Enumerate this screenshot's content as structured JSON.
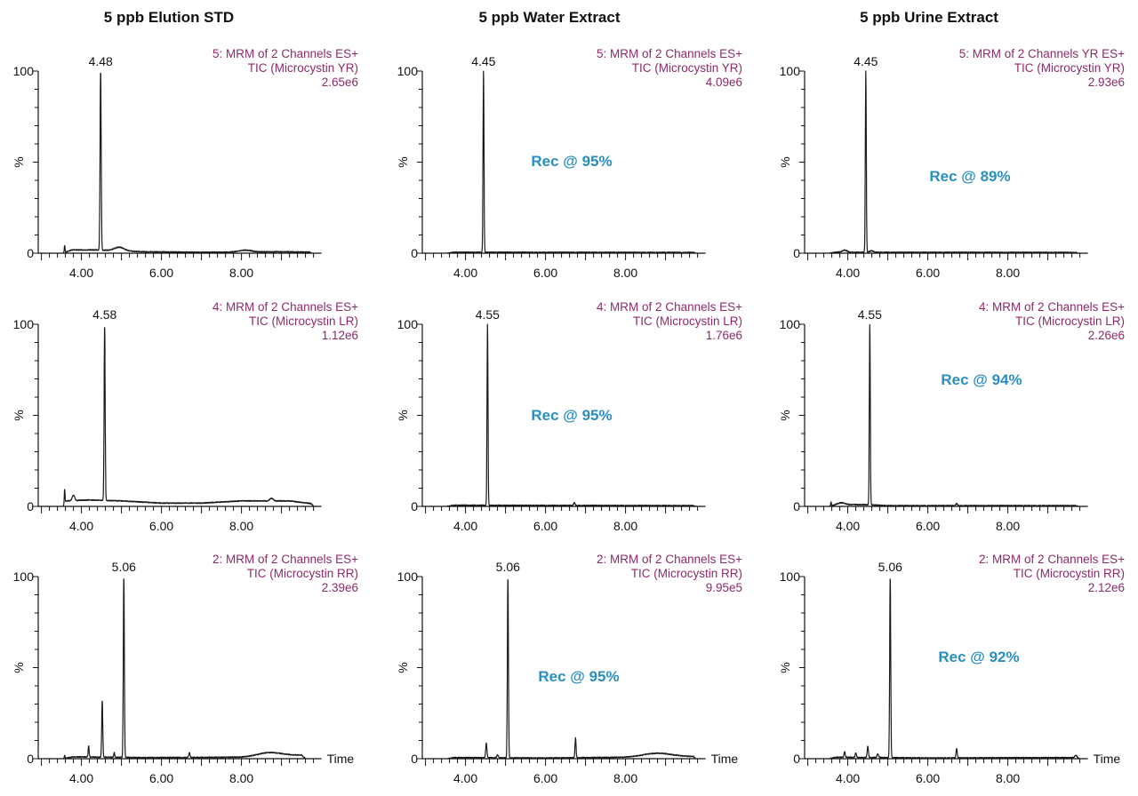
{
  "columns": [
    "5 ppb Elution STD",
    "5 ppb Water Extract",
    "5 ppb Urine Extract"
  ],
  "chart_data": [
    {
      "type": "line",
      "row": 0,
      "col": 0,
      "header": [
        "5: MRM of 2 Channels ES+",
        "TIC (Microcystin YR)",
        "2.65e6"
      ],
      "peak_label": "4.48",
      "recovery": null,
      "xlabel": "",
      "ylabel": "%",
      "yticks": [
        "0",
        "100"
      ],
      "xticks": [
        "4.00",
        "6.00",
        "8.00"
      ],
      "xlim": [
        2.92,
        10.0
      ],
      "ylim": [
        0,
        100
      ],
      "peaks": [
        {
          "rt": 3.58,
          "h": 4,
          "w": 0.01
        },
        {
          "rt": 4.48,
          "h": 98,
          "w": 0.014
        },
        {
          "rt": 4.95,
          "h": 2,
          "w": 0.12
        },
        {
          "rt": 8.1,
          "h": 1,
          "w": 0.15
        }
      ],
      "baseline": [
        [
          3.55,
          0
        ],
        [
          3.75,
          1.8
        ],
        [
          4.4,
          1.8
        ],
        [
          5.5,
          0.8
        ],
        [
          7,
          0.5
        ],
        [
          9,
          0.8
        ],
        [
          9.7,
          0.6
        ],
        [
          9.75,
          0
        ]
      ]
    },
    {
      "type": "line",
      "row": 0,
      "col": 1,
      "header": [
        "5: MRM of 2 Channels ES+",
        "TIC (Microcystin YR)",
        "4.09e6"
      ],
      "peak_label": "4.45",
      "recovery": "Rec @ 95%",
      "xlabel": "",
      "ylabel": "%",
      "yticks": [
        "0",
        "100"
      ],
      "xticks": [
        "4.00",
        "6.00",
        "8.00"
      ],
      "xlim": [
        2.92,
        10.0
      ],
      "ylim": [
        0,
        100
      ],
      "peaks": [
        {
          "rt": 4.45,
          "h": 99.5,
          "w": 0.012
        }
      ],
      "baseline": [
        [
          3.55,
          0
        ],
        [
          3.7,
          0.5
        ],
        [
          9.7,
          0.4
        ],
        [
          9.75,
          0
        ]
      ]
    },
    {
      "type": "line",
      "row": 0,
      "col": 2,
      "header": [
        "5: MRM of 2 Channels YR ES+",
        "TIC (Microcystin YR)",
        "2.93e6"
      ],
      "peak_label": "4.45",
      "recovery": "Rec @ 89%",
      "xlabel": "",
      "ylabel": "%",
      "yticks": [
        "0",
        "100"
      ],
      "xticks": [
        "4.00",
        "6.00",
        "8.00"
      ],
      "xlim": [
        2.92,
        10.0
      ],
      "ylim": [
        0,
        100
      ],
      "peaks": [
        {
          "rt": 3.92,
          "h": 1.2,
          "w": 0.06
        },
        {
          "rt": 4.45,
          "h": 99.5,
          "w": 0.012
        },
        {
          "rt": 4.6,
          "h": 0.8,
          "w": 0.05
        }
      ],
      "baseline": [
        [
          3.55,
          0
        ],
        [
          3.7,
          0.5
        ],
        [
          9.7,
          0.4
        ],
        [
          9.75,
          0
        ]
      ]
    },
    {
      "type": "line",
      "row": 1,
      "col": 0,
      "header": [
        "4: MRM of 2 Channels ES+",
        "TIC (Microcystin LR)",
        "1.12e6"
      ],
      "peak_label": "4.58",
      "recovery": null,
      "xlabel": "",
      "ylabel": "%",
      "yticks": [
        "0",
        "100"
      ],
      "xticks": [
        "4.00",
        "6.00",
        "8.00"
      ],
      "xlim": [
        2.92,
        10.0
      ],
      "ylim": [
        0,
        100
      ],
      "peaks": [
        {
          "rt": 3.58,
          "h": 8,
          "w": 0.01
        },
        {
          "rt": 3.8,
          "h": 3,
          "w": 0.03
        },
        {
          "rt": 4.58,
          "h": 96,
          "w": 0.013
        },
        {
          "rt": 8.75,
          "h": 1.5,
          "w": 0.04
        }
      ],
      "baseline": [
        [
          3.55,
          0
        ],
        [
          3.62,
          3
        ],
        [
          4.2,
          3.5
        ],
        [
          5,
          3
        ],
        [
          6,
          1.8
        ],
        [
          7,
          1.8
        ],
        [
          8,
          3
        ],
        [
          9.2,
          3
        ],
        [
          9.75,
          1.5
        ],
        [
          9.8,
          0
        ]
      ]
    },
    {
      "type": "line",
      "row": 1,
      "col": 1,
      "header": [
        "4: MRM of 2 Channels ES+",
        "TIC (Microcystin LR)",
        "1.76e6"
      ],
      "peak_label": "4.55",
      "recovery": "Rec @ 95%",
      "xlabel": "",
      "ylabel": "%",
      "yticks": [
        "0",
        "100"
      ],
      "xticks": [
        "4.00",
        "6.00",
        "8.00"
      ],
      "xlim": [
        2.92,
        10.0
      ],
      "ylim": [
        0,
        100
      ],
      "peaks": [
        {
          "rt": 4.55,
          "h": 99.5,
          "w": 0.012
        },
        {
          "rt": 6.72,
          "h": 1.5,
          "w": 0.02
        }
      ],
      "baseline": [
        [
          3.55,
          0
        ],
        [
          3.7,
          0.6
        ],
        [
          9.7,
          0.4
        ],
        [
          9.75,
          0
        ]
      ]
    },
    {
      "type": "line",
      "row": 1,
      "col": 2,
      "header": [
        "4: MRM of 2 Channels ES+",
        "TIC (Microcystin LR)",
        "2.26e6"
      ],
      "peak_label": "4.55",
      "recovery": "Rec @ 94%",
      "xlabel": "",
      "ylabel": "%",
      "yticks": [
        "0",
        "100"
      ],
      "xticks": [
        "4.00",
        "6.00",
        "8.00"
      ],
      "xlim": [
        2.92,
        10.0
      ],
      "ylim": [
        0,
        100
      ],
      "peaks": [
        {
          "rt": 3.58,
          "h": 2,
          "w": 0.01
        },
        {
          "rt": 3.85,
          "h": 1,
          "w": 0.08
        },
        {
          "rt": 4.55,
          "h": 99,
          "w": 0.012
        },
        {
          "rt": 6.72,
          "h": 1.2,
          "w": 0.02
        }
      ],
      "baseline": [
        [
          3.55,
          0
        ],
        [
          3.7,
          1
        ],
        [
          4.4,
          1
        ],
        [
          5,
          0.4
        ],
        [
          9.7,
          0.4
        ],
        [
          9.75,
          0
        ]
      ]
    },
    {
      "type": "line",
      "row": 2,
      "col": 0,
      "header": [
        "2: MRM of 2 Channels ES+",
        "TIC (Microcystin RR)",
        "2.39e6"
      ],
      "peak_label": "5.06",
      "recovery": null,
      "xlabel": "Time",
      "ylabel": "%",
      "yticks": [
        "0",
        "100"
      ],
      "xticks": [
        "4.00",
        "6.00",
        "8.00"
      ],
      "xlim": [
        2.92,
        10.0
      ],
      "ylim": [
        0,
        100
      ],
      "peaks": [
        {
          "rt": 3.58,
          "h": 1.5,
          "w": 0.01
        },
        {
          "rt": 4.18,
          "h": 6,
          "w": 0.012
        },
        {
          "rt": 4.52,
          "h": 31,
          "w": 0.013
        },
        {
          "rt": 4.82,
          "h": 2.5,
          "w": 0.012
        },
        {
          "rt": 5.06,
          "h": 99,
          "w": 0.013
        },
        {
          "rt": 6.7,
          "h": 2.5,
          "w": 0.015
        },
        {
          "rt": 8.7,
          "h": 2,
          "w": 0.3
        }
      ],
      "baseline": [
        [
          3.55,
          0
        ],
        [
          3.8,
          1
        ],
        [
          5.5,
          0.6
        ],
        [
          8,
          0.8
        ],
        [
          9.5,
          2
        ],
        [
          9.6,
          0
        ]
      ]
    },
    {
      "type": "line",
      "row": 2,
      "col": 1,
      "header": [
        "2: MRM of 2 Channels ES+",
        "TIC (Microcystin RR)",
        "9.95e5"
      ],
      "peak_label": "5.06",
      "recovery": "Rec @ 95%",
      "xlabel": "Time",
      "ylabel": "%",
      "yticks": [
        "0",
        "100"
      ],
      "xticks": [
        "4.00",
        "6.00",
        "8.00"
      ],
      "xlim": [
        2.92,
        10.0
      ],
      "ylim": [
        0,
        100
      ],
      "peaks": [
        {
          "rt": 4.52,
          "h": 8,
          "w": 0.015
        },
        {
          "rt": 4.8,
          "h": 1.5,
          "w": 0.02
        },
        {
          "rt": 5.06,
          "h": 99,
          "w": 0.013
        },
        {
          "rt": 6.75,
          "h": 11,
          "w": 0.013
        },
        {
          "rt": 8.8,
          "h": 2,
          "w": 0.35
        }
      ],
      "baseline": [
        [
          3.55,
          0
        ],
        [
          3.7,
          0.6
        ],
        [
          6,
          0.4
        ],
        [
          8,
          0.8
        ],
        [
          9.7,
          1.2
        ],
        [
          9.75,
          0
        ]
      ]
    },
    {
      "type": "line",
      "row": 2,
      "col": 2,
      "header": [
        "2: MRM of 2 Channels ES+",
        "TIC (Microcystin RR)",
        "2.12e6"
      ],
      "peak_label": "5.06",
      "recovery": "Rec @ 92%",
      "xlabel": "Time",
      "ylabel": "%",
      "yticks": [
        "0",
        "100"
      ],
      "xticks": [
        "4.00",
        "6.00",
        "8.00"
      ],
      "xlim": [
        2.92,
        10.0
      ],
      "ylim": [
        0,
        100
      ],
      "peaks": [
        {
          "rt": 3.92,
          "h": 3,
          "w": 0.015
        },
        {
          "rt": 4.2,
          "h": 2.5,
          "w": 0.015
        },
        {
          "rt": 4.5,
          "h": 6,
          "w": 0.015
        },
        {
          "rt": 4.75,
          "h": 2,
          "w": 0.02
        },
        {
          "rt": 5.06,
          "h": 99,
          "w": 0.013
        },
        {
          "rt": 6.72,
          "h": 5,
          "w": 0.015
        },
        {
          "rt": 9.7,
          "h": 1.5,
          "w": 0.03
        }
      ],
      "baseline": [
        [
          3.55,
          0
        ],
        [
          3.7,
          0.8
        ],
        [
          6,
          0.4
        ],
        [
          9.6,
          0.6
        ],
        [
          9.8,
          0
        ]
      ]
    }
  ]
}
